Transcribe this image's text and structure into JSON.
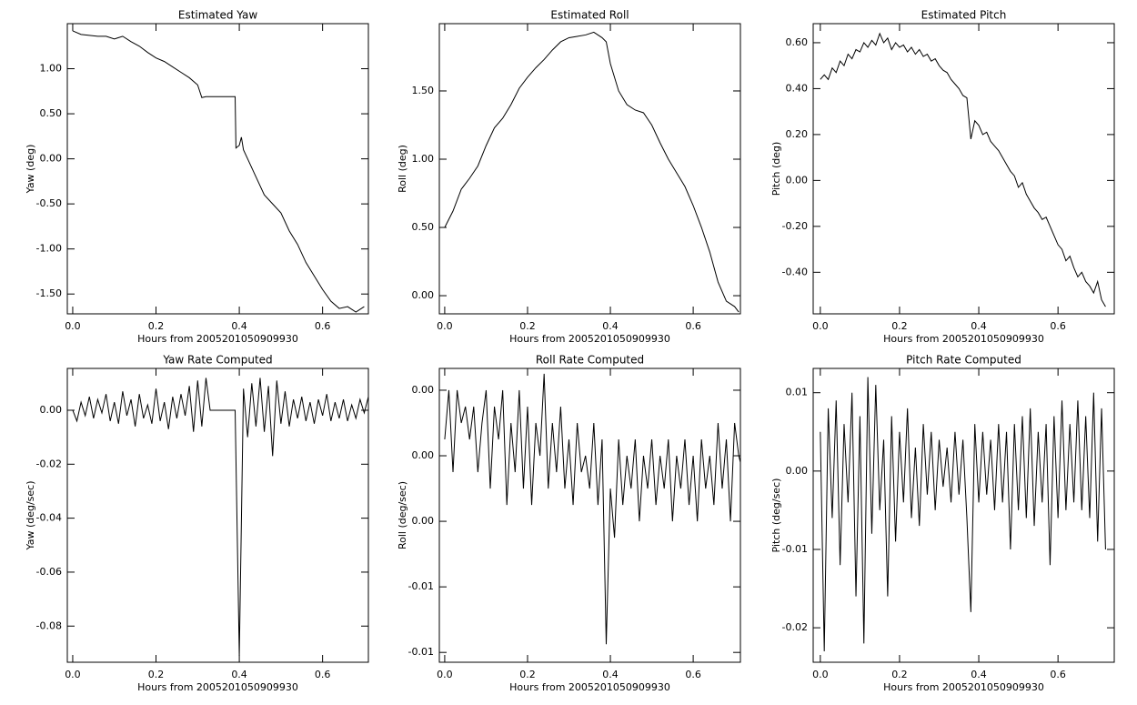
{
  "chart_data": [
    {
      "type": "line",
      "title": "Estimated Yaw",
      "xlabel": "Hours from 2005201050909930",
      "ylabel": "Yaw (deg)",
      "color": "#000000",
      "x": [
        0,
        0.02,
        0.04,
        0.06,
        0.08,
        0.1,
        0.12,
        0.14,
        0.16,
        0.18,
        0.2,
        0.22,
        0.24,
        0.26,
        0.28,
        0.3,
        0.31,
        0.32,
        0.39,
        0.392,
        0.4,
        0.405,
        0.41,
        0.42,
        0.44,
        0.46,
        0.48,
        0.5,
        0.52,
        0.54,
        0.56,
        0.58,
        0.6,
        0.62,
        0.64,
        0.66,
        0.68,
        0.7
      ],
      "values": [
        1.42,
        1.38,
        1.37,
        1.36,
        1.36,
        1.33,
        1.36,
        1.3,
        1.25,
        1.18,
        1.12,
        1.08,
        1.02,
        0.96,
        0.9,
        0.82,
        0.68,
        0.69,
        0.69,
        0.12,
        0.15,
        0.24,
        0.1,
        0.0,
        -0.2,
        -0.4,
        -0.5,
        -0.6,
        -0.8,
        -0.95,
        -1.15,
        -1.3,
        -1.45,
        -1.58,
        -1.66,
        -1.64,
        -1.7,
        -1.64
      ],
      "xlim": [
        -0.013,
        0.71
      ],
      "ylim": [
        -1.72,
        1.5
      ],
      "xticks": [
        {
          "value": 0,
          "label": "0.0"
        },
        {
          "value": 0.2,
          "label": "0.2"
        },
        {
          "value": 0.4,
          "label": "0.4"
        },
        {
          "value": 0.6,
          "label": "0.6"
        }
      ],
      "yticks": [
        {
          "value": 1,
          "label": "1.00"
        },
        {
          "value": 0.5,
          "label": "0.50"
        },
        {
          "value": 0,
          "label": "0.00"
        },
        {
          "value": -0.5,
          "label": "-0.50"
        },
        {
          "value": -1,
          "label": "-1.00"
        },
        {
          "value": -1.5,
          "label": "-1.50"
        }
      ]
    },
    {
      "type": "line",
      "title": "Estimated Roll",
      "xlabel": "Hours from 2005201050909930",
      "ylabel": "Roll (deg)",
      "color": "#000000",
      "x": [
        0,
        0.02,
        0.04,
        0.06,
        0.08,
        0.1,
        0.12,
        0.14,
        0.16,
        0.18,
        0.2,
        0.22,
        0.24,
        0.26,
        0.28,
        0.3,
        0.32,
        0.34,
        0.36,
        0.38,
        0.39,
        0.4,
        0.42,
        0.44,
        0.46,
        0.48,
        0.5,
        0.52,
        0.54,
        0.56,
        0.58,
        0.6,
        0.62,
        0.64,
        0.66,
        0.68,
        0.7,
        0.71
      ],
      "values": [
        0.5,
        0.62,
        0.78,
        0.86,
        0.95,
        1.1,
        1.23,
        1.3,
        1.4,
        1.52,
        1.6,
        1.67,
        1.73,
        1.8,
        1.86,
        1.89,
        1.9,
        1.91,
        1.93,
        1.89,
        1.86,
        1.7,
        1.5,
        1.4,
        1.36,
        1.34,
        1.25,
        1.12,
        1.0,
        0.9,
        0.8,
        0.66,
        0.5,
        0.32,
        0.1,
        -0.04,
        -0.08,
        -0.12
      ],
      "xlim": [
        -0.013,
        0.714
      ],
      "ylim": [
        -0.133,
        1.993
      ],
      "xticks": [
        {
          "value": 0,
          "label": "0.0"
        },
        {
          "value": 0.2,
          "label": "0.2"
        },
        {
          "value": 0.4,
          "label": "0.4"
        },
        {
          "value": 0.6,
          "label": "0.6"
        }
      ],
      "yticks": [
        {
          "value": 1.5,
          "label": "1.50"
        },
        {
          "value": 1,
          "label": "1.00"
        },
        {
          "value": 0.5,
          "label": "0.50"
        },
        {
          "value": 0,
          "label": "0.00"
        }
      ]
    },
    {
      "type": "line",
      "title": "Estimated Pitch",
      "xlabel": "Hours from 2005201050909930",
      "ylabel": "Pitch (deg)",
      "color": "#000000",
      "x": [
        0,
        0.01,
        0.02,
        0.03,
        0.04,
        0.05,
        0.06,
        0.07,
        0.08,
        0.09,
        0.1,
        0.11,
        0.12,
        0.13,
        0.14,
        0.15,
        0.16,
        0.17,
        0.18,
        0.19,
        0.2,
        0.21,
        0.22,
        0.23,
        0.24,
        0.25,
        0.26,
        0.27,
        0.28,
        0.29,
        0.3,
        0.31,
        0.32,
        0.33,
        0.34,
        0.35,
        0.36,
        0.37,
        0.38,
        0.39,
        0.4,
        0.41,
        0.42,
        0.43,
        0.44,
        0.45,
        0.46,
        0.47,
        0.48,
        0.49,
        0.5,
        0.51,
        0.52,
        0.53,
        0.54,
        0.55,
        0.56,
        0.57,
        0.58,
        0.59,
        0.6,
        0.61,
        0.62,
        0.63,
        0.64,
        0.65,
        0.66,
        0.67,
        0.68,
        0.69,
        0.7,
        0.71,
        0.72
      ],
      "values": [
        0.44,
        0.46,
        0.44,
        0.49,
        0.47,
        0.52,
        0.5,
        0.55,
        0.53,
        0.57,
        0.56,
        0.6,
        0.58,
        0.61,
        0.59,
        0.64,
        0.6,
        0.62,
        0.57,
        0.6,
        0.58,
        0.59,
        0.56,
        0.58,
        0.55,
        0.57,
        0.54,
        0.55,
        0.52,
        0.53,
        0.5,
        0.48,
        0.47,
        0.44,
        0.42,
        0.4,
        0.37,
        0.36,
        0.18,
        0.26,
        0.24,
        0.2,
        0.21,
        0.17,
        0.15,
        0.13,
        0.1,
        0.07,
        0.04,
        0.02,
        -0.03,
        -0.01,
        -0.06,
        -0.09,
        -0.12,
        -0.14,
        -0.17,
        -0.16,
        -0.2,
        -0.24,
        -0.28,
        -0.3,
        -0.35,
        -0.33,
        -0.38,
        -0.42,
        -0.4,
        -0.44,
        -0.46,
        -0.49,
        -0.44,
        -0.52,
        -0.55
      ],
      "xlim": [
        -0.018,
        0.742
      ],
      "ylim": [
        -0.581,
        0.683
      ],
      "xticks": [
        {
          "value": 0,
          "label": "0.0"
        },
        {
          "value": 0.2,
          "label": "0.2"
        },
        {
          "value": 0.4,
          "label": "0.4"
        },
        {
          "value": 0.6,
          "label": "0.6"
        }
      ],
      "yticks": [
        {
          "value": 0.6,
          "label": "0.60"
        },
        {
          "value": 0.4,
          "label": "0.40"
        },
        {
          "value": 0.2,
          "label": "0.20"
        },
        {
          "value": 0,
          "label": "0.00"
        },
        {
          "value": -0.2,
          "label": "-0.20"
        },
        {
          "value": -0.4,
          "label": "-0.40"
        }
      ]
    },
    {
      "type": "line",
      "title": "Yaw Rate Computed",
      "xlabel": "Hours from 2005201050909930",
      "ylabel": "Yaw (deg/sec)",
      "color": "#000000",
      "x": [
        0,
        0.01,
        0.02,
        0.03,
        0.04,
        0.05,
        0.06,
        0.07,
        0.08,
        0.09,
        0.1,
        0.11,
        0.12,
        0.13,
        0.14,
        0.15,
        0.16,
        0.17,
        0.18,
        0.19,
        0.2,
        0.21,
        0.22,
        0.23,
        0.24,
        0.25,
        0.26,
        0.27,
        0.28,
        0.29,
        0.3,
        0.31,
        0.32,
        0.33,
        0.34,
        0.35,
        0.36,
        0.37,
        0.38,
        0.39,
        0.4,
        0.41,
        0.42,
        0.43,
        0.44,
        0.45,
        0.46,
        0.47,
        0.48,
        0.49,
        0.5,
        0.51,
        0.52,
        0.53,
        0.54,
        0.55,
        0.56,
        0.57,
        0.58,
        0.59,
        0.6,
        0.61,
        0.62,
        0.63,
        0.64,
        0.65,
        0.66,
        0.67,
        0.68,
        0.69,
        0.7,
        0.71,
        0.72
      ],
      "values": [
        0,
        -0.004,
        0.003,
        -0.002,
        0.005,
        -0.003,
        0.004,
        -0.001,
        0.006,
        -0.004,
        0.003,
        -0.005,
        0.007,
        -0.002,
        0.004,
        -0.006,
        0.006,
        -0.003,
        0.002,
        -0.005,
        0.008,
        -0.004,
        0.003,
        -0.007,
        0.005,
        -0.003,
        0.006,
        -0.002,
        0.009,
        -0.008,
        0.011,
        -0.006,
        0.012,
        0,
        0,
        0,
        0,
        0,
        0,
        0,
        -0.091,
        0.008,
        -0.01,
        0.01,
        -0.006,
        0.012,
        -0.008,
        0.009,
        -0.017,
        0.011,
        -0.005,
        0.007,
        -0.006,
        0.004,
        -0.003,
        0.005,
        -0.004,
        0.003,
        -0.005,
        0.004,
        -0.002,
        0.006,
        -0.004,
        0.003,
        -0.003,
        0.004,
        -0.004,
        0.002,
        -0.003,
        0.004,
        -0.001,
        0.005,
        0
      ],
      "xlim": [
        -0.013,
        0.71
      ],
      "ylim": [
        -0.0934,
        0.0155
      ],
      "xticks": [
        {
          "value": 0,
          "label": "0.0"
        },
        {
          "value": 0.2,
          "label": "0.2"
        },
        {
          "value": 0.4,
          "label": "0.4"
        },
        {
          "value": 0.6,
          "label": "0.6"
        }
      ],
      "yticks": [
        {
          "value": 0,
          "label": "0.00"
        },
        {
          "value": -0.02,
          "label": "-0.02"
        },
        {
          "value": -0.04,
          "label": "-0.04"
        },
        {
          "value": -0.06,
          "label": "-0.06"
        },
        {
          "value": -0.08,
          "label": "-0.08"
        }
      ]
    },
    {
      "type": "line",
      "title": "Roll Rate Computed",
      "xlabel": "Hours from 2005201050909930",
      "ylabel": "Roll (deg/sec)",
      "color": "#000000",
      "x": [
        0,
        0.01,
        0.02,
        0.03,
        0.04,
        0.05,
        0.06,
        0.07,
        0.08,
        0.09,
        0.1,
        0.11,
        0.12,
        0.13,
        0.14,
        0.15,
        0.16,
        0.17,
        0.18,
        0.19,
        0.2,
        0.21,
        0.22,
        0.23,
        0.24,
        0.25,
        0.26,
        0.27,
        0.28,
        0.29,
        0.3,
        0.31,
        0.32,
        0.33,
        0.34,
        0.35,
        0.36,
        0.37,
        0.38,
        0.39,
        0.4,
        0.41,
        0.42,
        0.43,
        0.44,
        0.45,
        0.46,
        0.47,
        0.48,
        0.49,
        0.5,
        0.51,
        0.52,
        0.53,
        0.54,
        0.55,
        0.56,
        0.57,
        0.58,
        0.59,
        0.6,
        0.61,
        0.62,
        0.63,
        0.64,
        0.65,
        0.66,
        0.67,
        0.68,
        0.69,
        0.7,
        0.71,
        0.72
      ],
      "values": [
        0.001,
        0.004,
        -0.001,
        0.004,
        0.002,
        0.003,
        0.001,
        0.003,
        -0.001,
        0.002,
        0.004,
        -0.002,
        0.003,
        0.001,
        0.004,
        -0.003,
        0.002,
        -0.001,
        0.004,
        -0.002,
        0.003,
        -0.003,
        0.002,
        0,
        0.005,
        -0.002,
        0.002,
        -0.001,
        0.003,
        -0.002,
        0.001,
        -0.003,
        0.002,
        -0.001,
        0,
        -0.002,
        0.002,
        -0.003,
        0.001,
        -0.0115,
        -0.002,
        -0.005,
        0.001,
        -0.003,
        0,
        -0.002,
        0.001,
        -0.004,
        0,
        -0.002,
        0.001,
        -0.003,
        0,
        -0.002,
        0.001,
        -0.004,
        0,
        -0.002,
        0.001,
        -0.003,
        0,
        -0.004,
        0.001,
        -0.002,
        0,
        -0.003,
        0.002,
        -0.002,
        0.001,
        -0.004,
        0.002,
        0,
        -0.001
      ],
      "xlim": [
        -0.013,
        0.714
      ],
      "ylim": [
        -0.0126,
        0.00533
      ],
      "xticks": [
        {
          "value": 0,
          "label": "0.0"
        },
        {
          "value": 0.2,
          "label": "0.2"
        },
        {
          "value": 0.4,
          "label": "0.4"
        },
        {
          "value": 0.6,
          "label": "0.6"
        }
      ],
      "yticks": [
        {
          "value": 0.004,
          "label": "0.00"
        },
        {
          "value": 0,
          "label": "0.00"
        },
        {
          "value": -0.004,
          "label": "0.00"
        },
        {
          "value": -0.008,
          "label": "-0.01"
        },
        {
          "value": -0.012,
          "label": "-0.01"
        }
      ]
    },
    {
      "type": "line",
      "title": "Pitch Rate Computed",
      "xlabel": "Hours from 2005201050909930",
      "ylabel": "Pitch (deg/sec)",
      "color": "#000000",
      "x": [
        0,
        0.01,
        0.02,
        0.03,
        0.04,
        0.05,
        0.06,
        0.07,
        0.08,
        0.09,
        0.1,
        0.11,
        0.12,
        0.13,
        0.14,
        0.15,
        0.16,
        0.17,
        0.18,
        0.19,
        0.2,
        0.21,
        0.22,
        0.23,
        0.24,
        0.25,
        0.26,
        0.27,
        0.28,
        0.29,
        0.3,
        0.31,
        0.32,
        0.33,
        0.34,
        0.35,
        0.36,
        0.37,
        0.38,
        0.39,
        0.4,
        0.41,
        0.42,
        0.43,
        0.44,
        0.45,
        0.46,
        0.47,
        0.48,
        0.49,
        0.5,
        0.51,
        0.52,
        0.53,
        0.54,
        0.55,
        0.56,
        0.57,
        0.58,
        0.59,
        0.6,
        0.61,
        0.62,
        0.63,
        0.64,
        0.65,
        0.66,
        0.67,
        0.68,
        0.69,
        0.7,
        0.71,
        0.72
      ],
      "values": [
        0.005,
        -0.023,
        0.008,
        -0.006,
        0.009,
        -0.012,
        0.006,
        -0.004,
        0.01,
        -0.016,
        0.007,
        -0.022,
        0.012,
        -0.008,
        0.011,
        -0.005,
        0.004,
        -0.016,
        0.007,
        -0.009,
        0.005,
        -0.004,
        0.008,
        -0.006,
        0.003,
        -0.007,
        0.006,
        -0.003,
        0.005,
        -0.005,
        0.004,
        -0.002,
        0.003,
        -0.004,
        0.005,
        -0.003,
        0.004,
        -0.006,
        -0.018,
        0.006,
        -0.004,
        0.005,
        -0.003,
        0.004,
        -0.005,
        0.006,
        -0.004,
        0.005,
        -0.01,
        0.006,
        -0.005,
        0.007,
        -0.006,
        0.008,
        -0.007,
        0.005,
        -0.004,
        0.006,
        -0.012,
        0.007,
        -0.006,
        0.009,
        -0.005,
        0.006,
        -0.004,
        0.009,
        -0.005,
        0.007,
        -0.006,
        0.01,
        -0.009,
        0.008,
        -0.01
      ],
      "xlim": [
        -0.018,
        0.742
      ],
      "ylim": [
        -0.0244,
        0.0131
      ],
      "xticks": [
        {
          "value": 0,
          "label": "0.0"
        },
        {
          "value": 0.2,
          "label": "0.2"
        },
        {
          "value": 0.4,
          "label": "0.4"
        },
        {
          "value": 0.6,
          "label": "0.6"
        }
      ],
      "yticks": [
        {
          "value": 0.01,
          "label": "0.01"
        },
        {
          "value": 0,
          "label": "0.00"
        },
        {
          "value": -0.01,
          "label": "-0.01"
        },
        {
          "value": -0.02,
          "label": "-0.02"
        }
      ]
    }
  ]
}
